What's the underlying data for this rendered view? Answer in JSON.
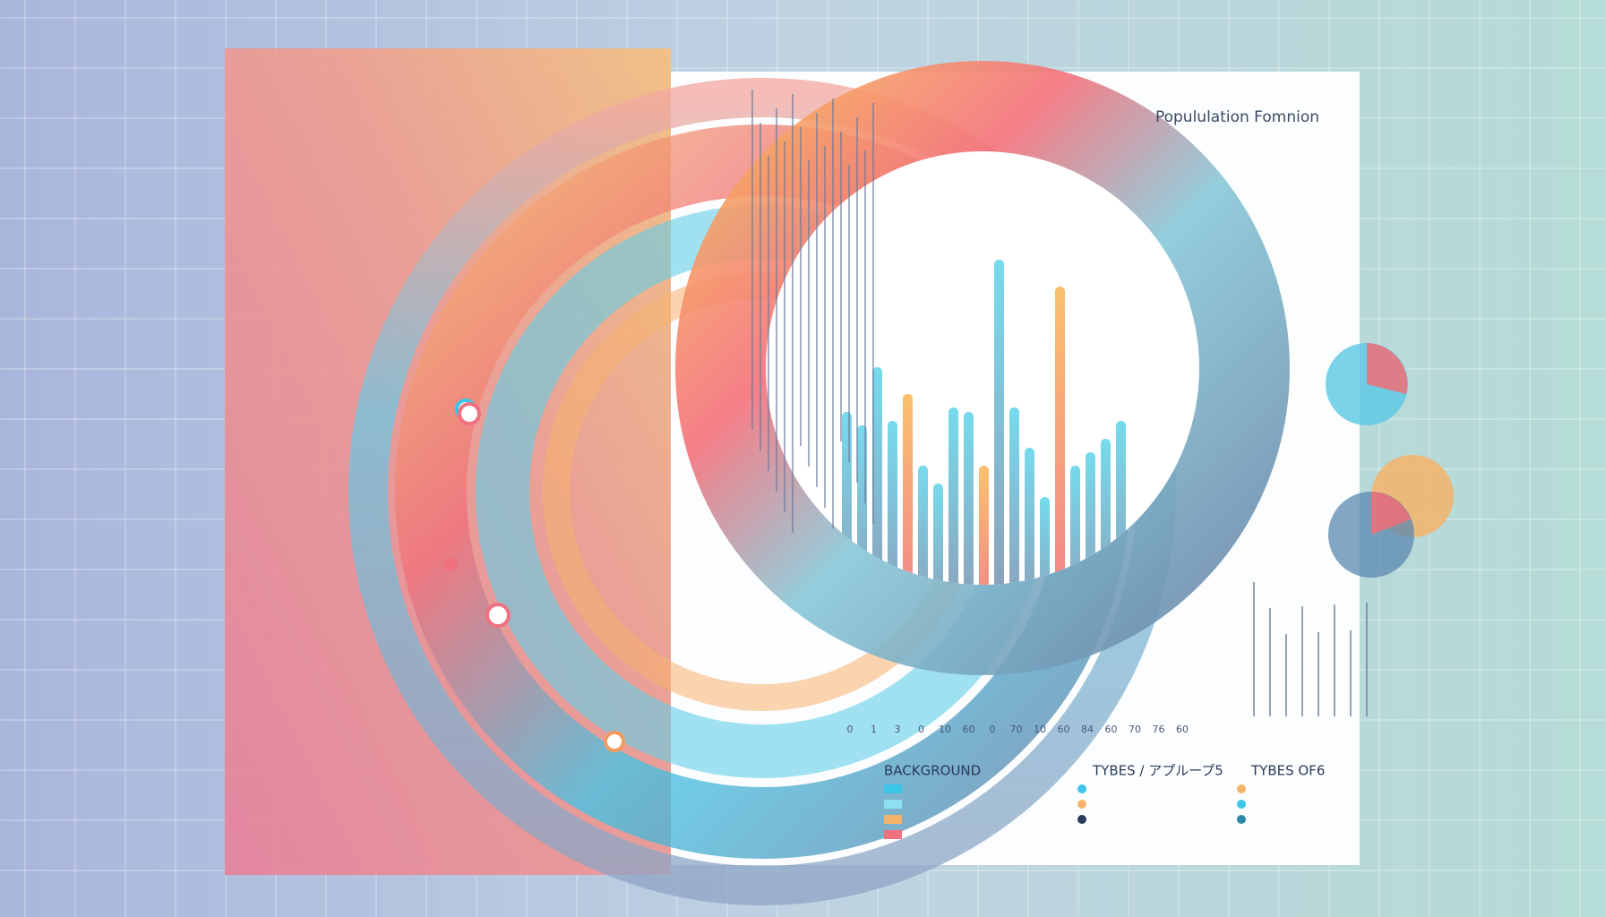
{
  "header": {
    "title": "Popululation Fomnion"
  },
  "axis": {
    "labels": [
      "0",
      "1",
      "3",
      "0",
      "10",
      "60",
      "0",
      "70",
      "10",
      "60",
      "84",
      "60",
      "70",
      "76",
      "60"
    ]
  },
  "legend": {
    "headings": [
      "BACKGROUND",
      "TYBES / アプループ5",
      "TYBES OF6"
    ]
  }
}
